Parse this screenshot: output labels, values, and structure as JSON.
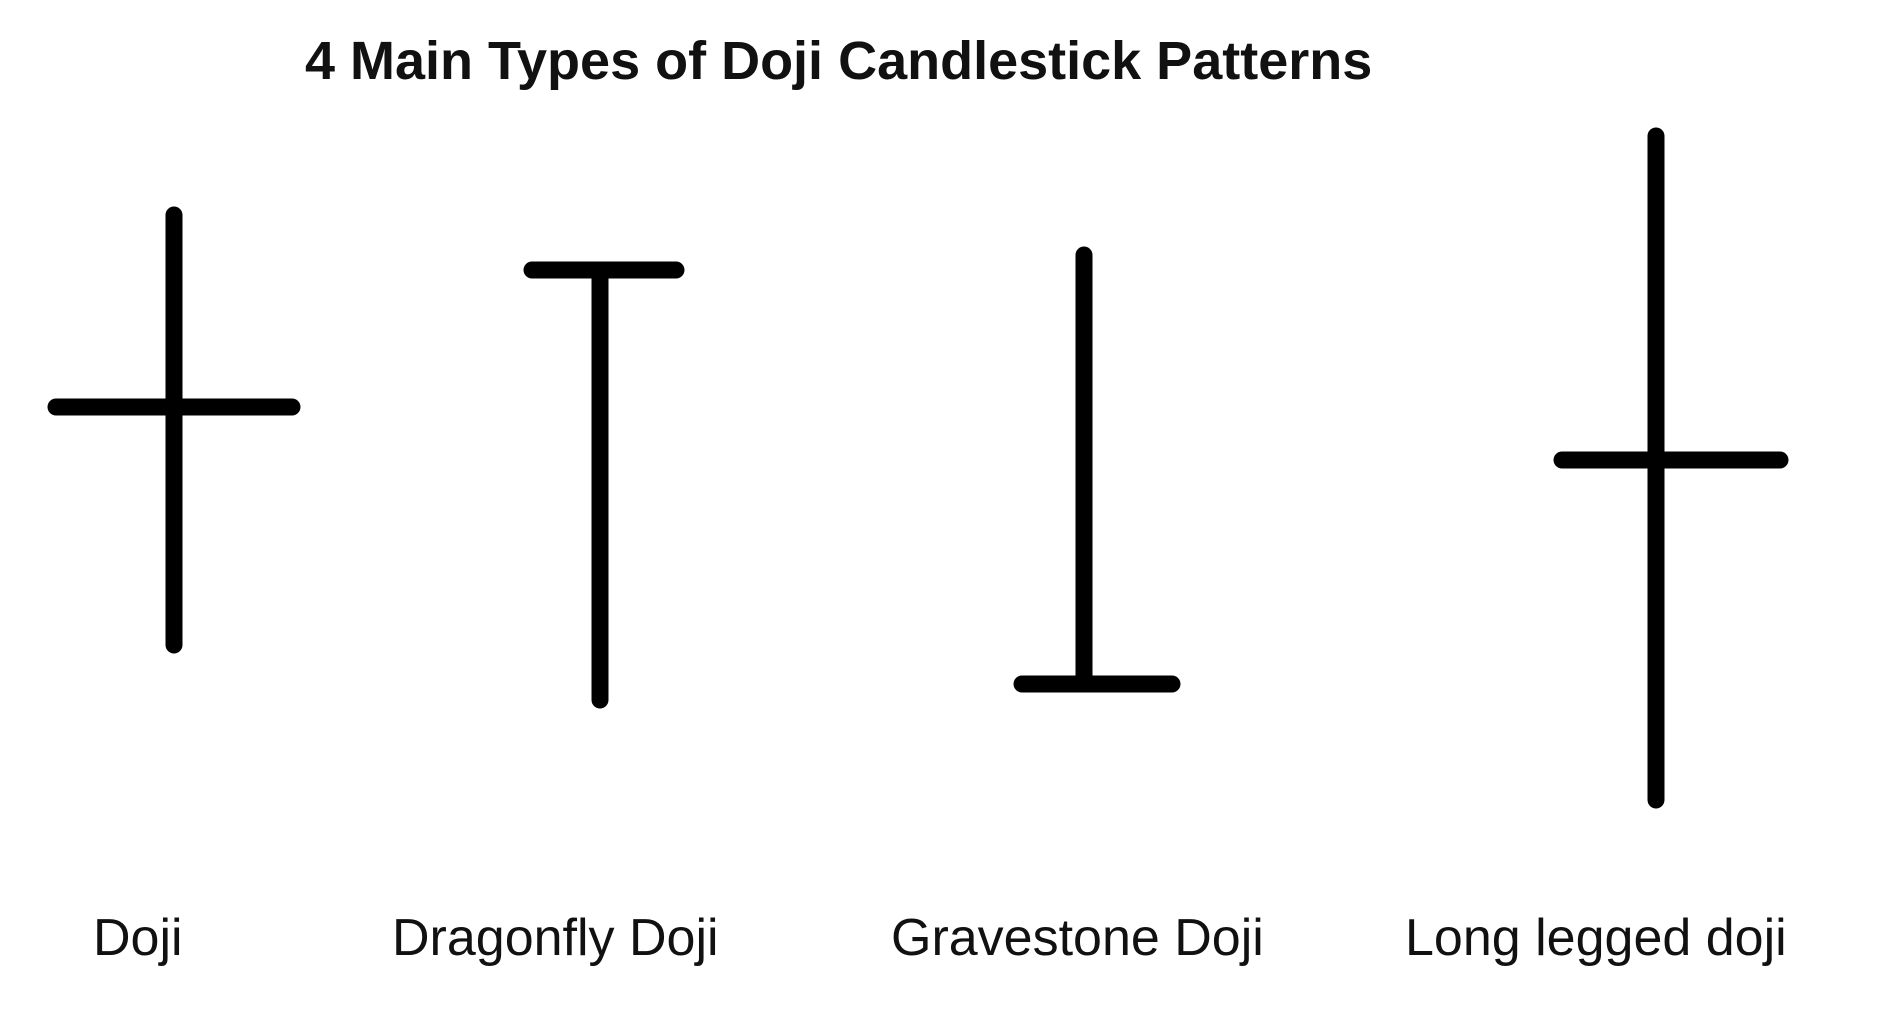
{
  "title": "4 Main Types of Doji Candlestick Patterns",
  "line_color": "#000000",
  "patterns": [
    {
      "label": "Doji"
    },
    {
      "label": "Dragonfly Doji"
    },
    {
      "label": "Gravestone Doji"
    },
    {
      "label": "Long legged doji"
    }
  ]
}
